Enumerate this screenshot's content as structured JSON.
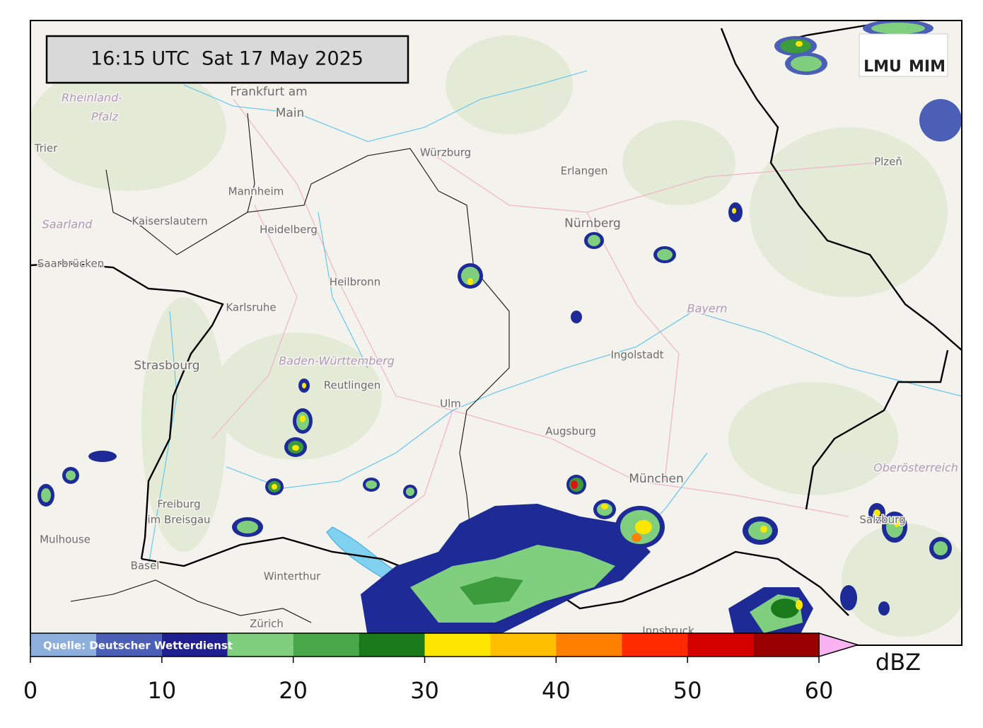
{
  "timestamp": "16:15 UTC  Sat 17 May 2025",
  "source": "Quelle: Deutscher Wetterdienst",
  "logo": [
    "LMU",
    "MIM"
  ],
  "places": [
    "Frankfurt am",
    "Main",
    "Rheinland-",
    "Pfalz",
    "Trier",
    "Würzburg",
    "Erlangen",
    "Nürnberg",
    "Mannheim",
    "Kaiserslautern",
    "Heidelberg",
    "Saarland",
    "Saarbrücken",
    "Heilbronn",
    "Karlsruhe",
    "Strasbourg",
    "Baden-Württemberg",
    "Reutlingen",
    "Ulm",
    "Augsburg",
    "Ingolstadt",
    "Bayern",
    "München",
    "Freiburg",
    "im Breisgau",
    "Mulhouse",
    "Basel",
    "Winterthur",
    "Zürich",
    "Innsbruck",
    "Salzburg",
    "Oberösterreich",
    "Plzeň"
  ],
  "colorbar": {
    "bounds": [
      0,
      5,
      10,
      15,
      20,
      25,
      30,
      35,
      40,
      45,
      50,
      55,
      60
    ],
    "colors": [
      "#8cafdc",
      "#4a5fb5",
      "#1f1f8f",
      "#7fcf7f",
      "#4aa84a",
      "#1a7a1a",
      "#ffe600",
      "#ffbf00",
      "#ff7f00",
      "#ff2a00",
      "#d40000",
      "#990000"
    ],
    "extend_color": "#f9b2f2",
    "ticks": [
      0,
      10,
      20,
      30,
      40,
      50,
      60
    ],
    "label": "dBZ"
  }
}
